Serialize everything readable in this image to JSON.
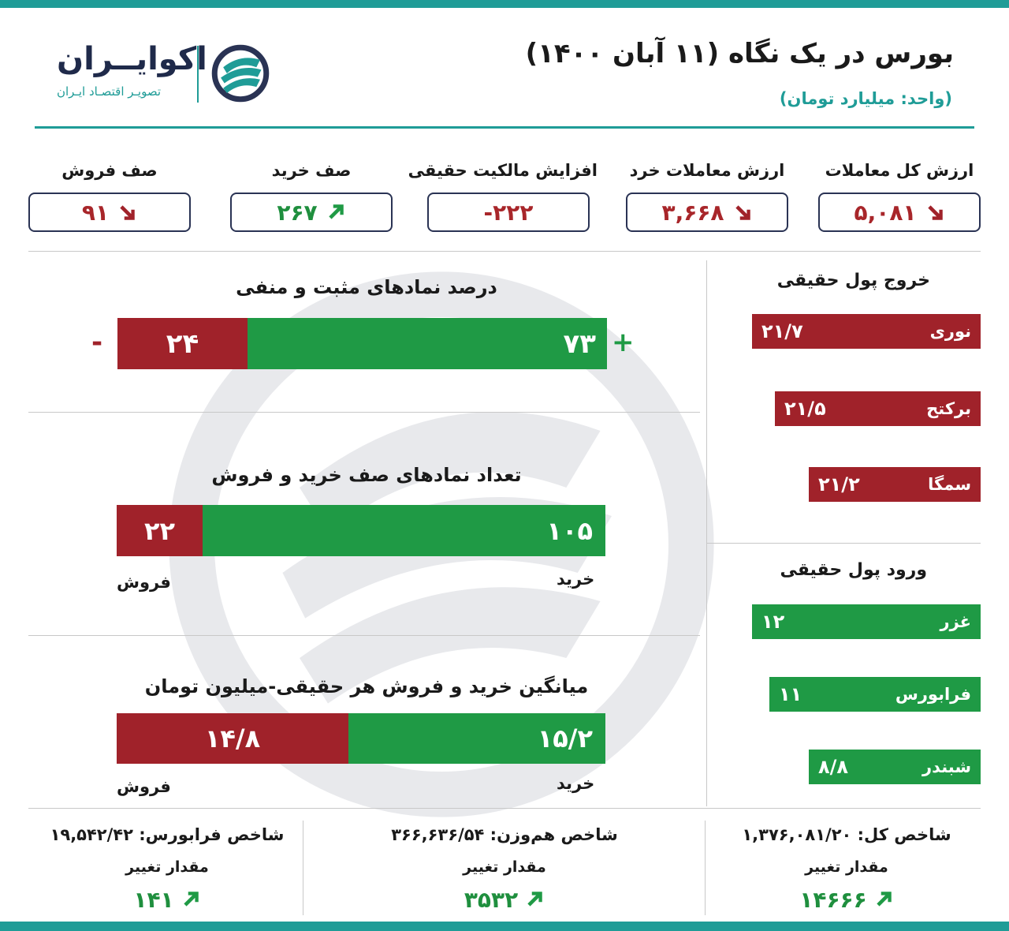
{
  "header": {
    "title": "بورس در یک نگاه (۱۱ آبان ۱۴۰۰)",
    "unit": "(واحد: میلیارد تومان)"
  },
  "logo": {
    "name": "اکوایــران",
    "tagline": "تصویـر اقتصـاد ایـران"
  },
  "colors": {
    "accent": "#1f9c97",
    "green": "#1f9a45",
    "red": "#a0222a",
    "navy": "#2a3354"
  },
  "stats": [
    {
      "label": "ارزش کل معاملات",
      "value": "۵,۰۸۱",
      "trend": "down"
    },
    {
      "label": "ارزش معاملات خرد",
      "value": "۳,۶۶۸",
      "trend": "down"
    },
    {
      "label": "افزایش مالکیت حقیقی",
      "value": "-۲۲۲",
      "trend": "none"
    },
    {
      "label": "صف خرید",
      "value": "۲۶۷",
      "trend": "up"
    },
    {
      "label": "صف فروش",
      "value": "۹۱",
      "trend": "down"
    }
  ],
  "chart_data": [
    {
      "type": "bar",
      "title": "درصد نمادهای مثبت و منفی",
      "series": [
        {
          "name": "+",
          "values": [
            73
          ],
          "label": "۷۳"
        },
        {
          "name": "-",
          "values": [
            24
          ],
          "label": "۲۴"
        }
      ]
    },
    {
      "type": "bar",
      "title": "تعداد نمادهای صف خرید و فروش",
      "series": [
        {
          "name": "خرید",
          "values": [
            105
          ],
          "label": "۱۰۵"
        },
        {
          "name": "فروش",
          "values": [
            22
          ],
          "label": "۲۲"
        }
      ]
    },
    {
      "type": "bar",
      "title": "میانگین خرید و فروش هر حقیقی-میلیون تومان",
      "series": [
        {
          "name": "خرید",
          "values": [
            15.2
          ],
          "label": "۱۵/۲"
        },
        {
          "name": "فروش",
          "values": [
            14.8
          ],
          "label": "۱۴/۸"
        }
      ]
    },
    {
      "type": "bar",
      "title": "خروج پول حقیقی",
      "categories": [
        "نوری",
        "برکتح",
        "سمگا"
      ],
      "values": [
        21.7,
        21.5,
        21.2
      ],
      "labels": [
        "۲۱/۷",
        "۲۱/۵",
        "۲۱/۲"
      ]
    },
    {
      "type": "bar",
      "title": "ورود پول حقیقی",
      "categories": [
        "غزر",
        "فرابورس",
        "شبندر"
      ],
      "values": [
        12,
        11,
        8.8
      ],
      "labels": [
        "۱۲",
        "۱۱",
        "۸/۸"
      ]
    }
  ],
  "indices": [
    {
      "name": "شاخص کل: ۱,۳۷۶,۰۸۱/۲۰",
      "sub": "مقدار تغییر",
      "change": "۱۴۶۶۶"
    },
    {
      "name": "شاخص هم‌وزن: ۳۶۶,۶۳۶/۵۴",
      "sub": "مقدار تغییر",
      "change": "۳۵۳۲"
    },
    {
      "name": "شاخص فرابورس: ۱۹,۵۴۲/۴۲",
      "sub": "مقدار تغییر",
      "change": "۱۴۱"
    }
  ]
}
